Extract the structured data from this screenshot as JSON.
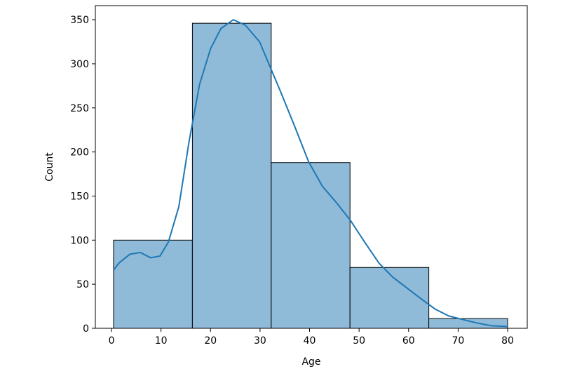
{
  "chart_data": {
    "type": "histogram",
    "x_label": "Age",
    "y_label": "Count",
    "bins": [
      0.42,
      16.336,
      32.252,
      48.168,
      64.084,
      80
    ],
    "values": [
      100,
      346,
      188,
      69,
      11
    ],
    "color": "#8fbbd9",
    "edgecolor": "#000000",
    "kde": {
      "color": "#1f77b4",
      "x": [
        0.42,
        1.5,
        3.7,
        5.8,
        7.9,
        9.8,
        11.5,
        13.6,
        15.7,
        17.8,
        20,
        22.1,
        24.6,
        27,
        29.9,
        32,
        34.1,
        37,
        39.8,
        42.6,
        45.5,
        48.3,
        51.1,
        54,
        56.8,
        59.6,
        62.4,
        65.3,
        68.1,
        70.9,
        73.8,
        76.6,
        80
      ],
      "values": [
        66,
        74,
        84,
        86,
        80,
        82,
        98,
        138,
        213,
        277,
        317,
        340,
        350,
        344,
        325,
        297,
        269,
        229,
        189,
        161,
        142,
        122,
        98,
        74,
        58,
        46,
        34,
        22,
        14,
        10,
        6,
        3,
        2
      ]
    },
    "xlim": [
      -3.26,
      83.96
    ],
    "ylim": [
      0,
      366
    ],
    "xticks": [
      0,
      10,
      20,
      30,
      40,
      50,
      60,
      70,
      80
    ],
    "yticks": [
      0,
      50,
      100,
      150,
      200,
      250,
      300,
      350
    ]
  }
}
